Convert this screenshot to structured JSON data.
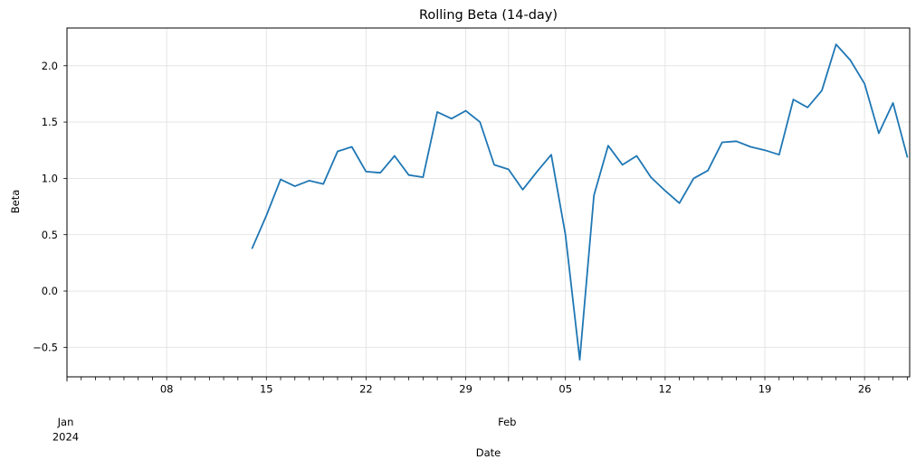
{
  "chart_data": {
    "type": "line",
    "title": "Rolling Beta (14-day)",
    "xlabel": "Date",
    "ylabel": "Beta",
    "legend": "none",
    "grid": true,
    "line_color": "#1f77b4",
    "grid_color": "#e2e2e2",
    "spine_color": "#000000",
    "tick_color": "#000000",
    "x_start": "2024-01-01",
    "x_end": "2024-02-29",
    "ylim": [
      -0.762,
      2.335
    ],
    "yticks": [
      {
        "value": -0.5,
        "label": "−0.5"
      },
      {
        "value": 0.0,
        "label": "0.0"
      },
      {
        "value": 0.5,
        "label": "0.5"
      },
      {
        "value": 1.0,
        "label": "1.0"
      },
      {
        "value": 1.5,
        "label": "1.5"
      },
      {
        "value": 2.0,
        "label": "2.0"
      }
    ],
    "x_major_ticks": [
      {
        "date": "2024-01-08",
        "label": "08"
      },
      {
        "date": "2024-01-15",
        "label": "15"
      },
      {
        "date": "2024-01-22",
        "label": "22"
      },
      {
        "date": "2024-01-29",
        "label": "29"
      },
      {
        "date": "2024-02-05",
        "label": "05"
      },
      {
        "date": "2024-02-12",
        "label": "12"
      },
      {
        "date": "2024-02-19",
        "label": "19"
      },
      {
        "date": "2024-02-26",
        "label": "26"
      }
    ],
    "x_month_labels": [
      {
        "date": "2024-01-01",
        "lines": [
          "Jan",
          "2024"
        ]
      },
      {
        "date": "2024-02-01",
        "lines": [
          "Feb"
        ]
      }
    ],
    "x_extra_gridlines": [
      "2024-02-01"
    ],
    "series": [
      {
        "name": "rolling-beta",
        "dates": [
          "2024-01-14",
          "2024-01-15",
          "2024-01-16",
          "2024-01-17",
          "2024-01-18",
          "2024-01-19",
          "2024-01-20",
          "2024-01-21",
          "2024-01-22",
          "2024-01-23",
          "2024-01-24",
          "2024-01-25",
          "2024-01-26",
          "2024-01-27",
          "2024-01-28",
          "2024-01-29",
          "2024-01-30",
          "2024-01-31",
          "2024-02-01",
          "2024-02-02",
          "2024-02-03",
          "2024-02-04",
          "2024-02-05",
          "2024-02-06",
          "2024-02-07",
          "2024-02-08",
          "2024-02-09",
          "2024-02-10",
          "2024-02-11",
          "2024-02-12",
          "2024-02-13",
          "2024-02-14",
          "2024-02-15",
          "2024-02-16",
          "2024-02-17",
          "2024-02-18",
          "2024-02-19",
          "2024-02-20",
          "2024-02-21",
          "2024-02-22",
          "2024-02-23",
          "2024-02-24",
          "2024-02-25",
          "2024-02-26",
          "2024-02-27",
          "2024-02-28",
          "2024-02-29"
        ],
        "values": [
          0.38,
          0.67,
          0.99,
          0.93,
          0.98,
          0.95,
          1.24,
          1.28,
          1.06,
          1.05,
          1.2,
          1.03,
          1.01,
          1.59,
          1.53,
          1.6,
          1.5,
          1.12,
          1.08,
          0.9,
          1.06,
          1.21,
          0.5,
          -0.61,
          0.85,
          1.29,
          1.12,
          1.2,
          1.01,
          0.89,
          0.78,
          1.0,
          1.07,
          1.32,
          1.33,
          1.28,
          1.25,
          1.21,
          1.7,
          1.63,
          1.78,
          2.19,
          2.05,
          1.84,
          1.4,
          1.67,
          1.19
        ]
      }
    ]
  }
}
